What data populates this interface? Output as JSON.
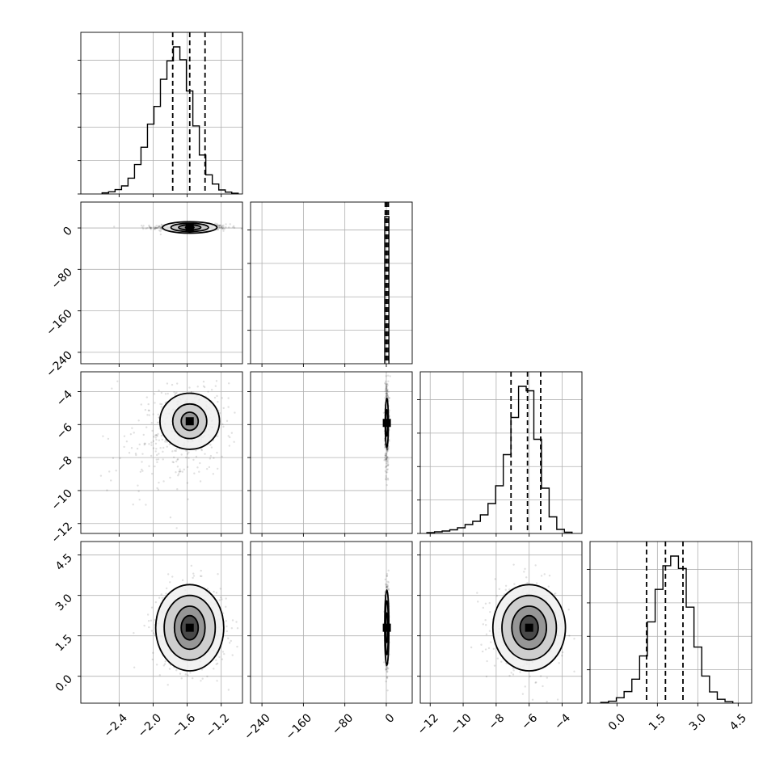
{
  "chart_data": {
    "type": "corner",
    "parameters": [
      {
        "range": [
          -2.85,
          -0.95
        ],
        "ticks": [
          -2.4,
          -2.0,
          -1.6,
          -1.2
        ],
        "tick_labels": [
          "−2.4",
          "−2.0",
          "−1.6",
          "−1.2"
        ],
        "quantiles": [
          -1.77,
          -1.57,
          -1.39
        ]
      },
      {
        "range": [
          -262,
          50
        ],
        "ticks": [
          -240,
          -160,
          -80,
          0
        ],
        "tick_labels": [
          "−240",
          "−160",
          "−80",
          "0"
        ],
        "quantiles": [
          -2,
          1,
          4
        ]
      },
      {
        "range": [
          -12.6,
          -2.8
        ],
        "ticks": [
          -12,
          -10,
          -8,
          -6,
          -4
        ],
        "tick_labels": [
          "−12",
          "−10",
          "−8",
          "−6",
          "−4"
        ],
        "quantiles": [
          -7.1,
          -6.1,
          -5.3
        ]
      },
      {
        "range": [
          -1.0,
          5.0
        ],
        "ticks": [
          0.0,
          1.5,
          3.0,
          4.5
        ],
        "tick_labels": [
          "0.0",
          "1.5",
          "3.0",
          "4.5"
        ],
        "quantiles": [
          1.1,
          1.8,
          2.45
        ]
      }
    ],
    "histograms": [
      {
        "param": 0,
        "edges_range": [
          -2.6,
          -1.0
        ],
        "counts": [
          0.3,
          0.6,
          1.2,
          2.2,
          4.3,
          8.0,
          12.7,
          19.0,
          23.8,
          31.2,
          36.2,
          40.0,
          36.5,
          28.0,
          18.5,
          10.6,
          5.2,
          2.7,
          1.1,
          0.5,
          0.2
        ]
      },
      {
        "param": 1,
        "edges_range": [
          -3,
          5
        ],
        "counts": [
          40
        ]
      },
      {
        "param": 2,
        "edges_range": [
          -12.2,
          -3.4
        ],
        "counts": [
          0.2,
          0.4,
          0.6,
          0.9,
          1.4,
          2.2,
          3.0,
          4.6,
          7.4,
          11.8,
          19.5,
          28.7,
          36.4,
          35.3,
          23.3,
          11.2,
          4.1,
          1.0,
          0.3
        ]
      },
      {
        "param": 3,
        "edges_range": [
          -0.6,
          4.3
        ],
        "counts": [
          0.2,
          0.5,
          1.4,
          3.0,
          6.2,
          12.2,
          21.0,
          29.4,
          35.5,
          38.0,
          34.8,
          24.8,
          14.5,
          7.0,
          2.9,
          1.0,
          0.4
        ]
      }
    ],
    "pairs": [
      {
        "x": 0,
        "y": 1,
        "center": [
          -1.57,
          1
        ],
        "contours": [
          [
            0.05,
            2
          ],
          [
            0.13,
            5
          ],
          [
            0.22,
            8
          ],
          [
            0.32,
            11
          ]
        ]
      },
      {
        "x": 0,
        "y": 2,
        "center": [
          -1.57,
          -5.8
        ],
        "contours": [
          [
            0.1,
            0.55
          ],
          [
            0.2,
            1.05
          ],
          [
            0.35,
            1.7
          ]
        ]
      },
      {
        "x": 0,
        "y": 3,
        "center": [
          -1.57,
          1.8
        ],
        "contours": [
          [
            0.1,
            0.45
          ],
          [
            0.18,
            0.8
          ],
          [
            0.3,
            1.2
          ],
          [
            0.4,
            1.6
          ]
        ]
      },
      {
        "x": 1,
        "y": 2,
        "center": [
          1,
          -5.9
        ],
        "contours": [
          [
            2,
            0.8
          ],
          [
            3,
            1.5
          ]
        ]
      },
      {
        "x": 1,
        "y": 3,
        "center": [
          1,
          1.8
        ],
        "contours": [
          [
            2,
            0.55
          ],
          [
            3,
            1.0
          ],
          [
            4,
            1.4
          ]
        ]
      },
      {
        "x": 2,
        "y": 3,
        "center": [
          -6.0,
          1.8
        ],
        "contours": [
          [
            0.55,
            0.45
          ],
          [
            1.05,
            0.8
          ],
          [
            1.65,
            1.2
          ],
          [
            2.2,
            1.6
          ]
        ]
      }
    ]
  }
}
